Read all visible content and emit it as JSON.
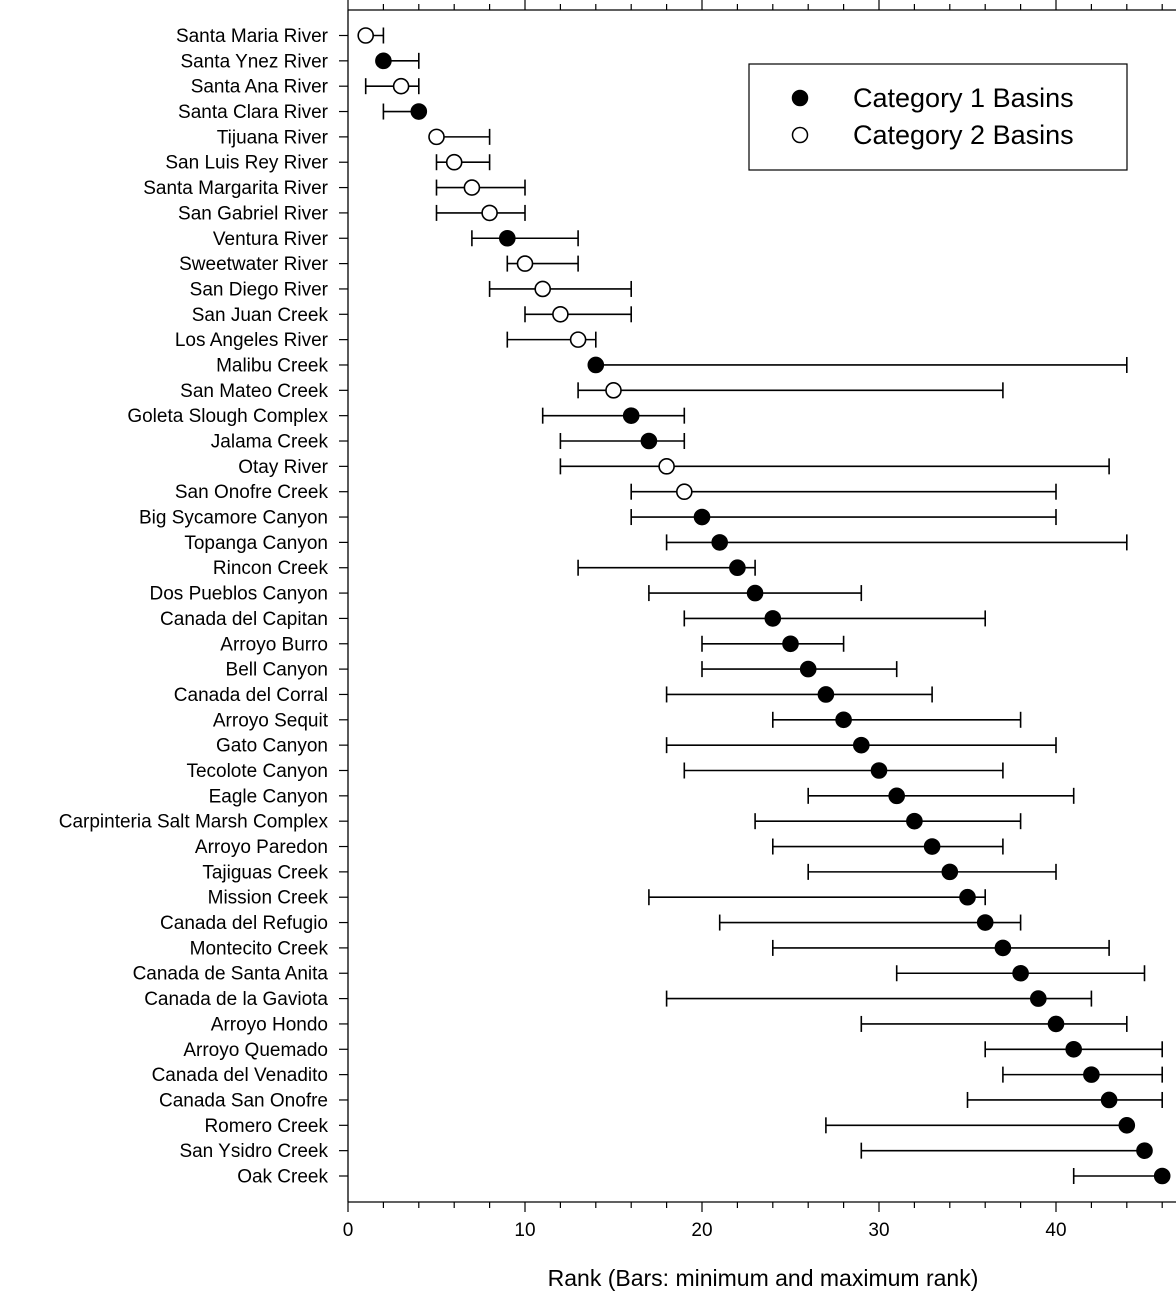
{
  "chart_data": {
    "type": "scatter",
    "title": "",
    "xlabel": "Rank  (Bars: minimum and maximum rank)",
    "ylabel": "",
    "xlim": [
      0,
      46.5
    ],
    "xticks": [
      0,
      10,
      20,
      30,
      40
    ],
    "grid": false,
    "legend_position": "top-right",
    "series": [
      {
        "name": "Category 1 Basins",
        "marker": "filled-circle",
        "color": "#000000"
      },
      {
        "name": "Category 2 Basins",
        "marker": "open-circle",
        "color": "#ffffff"
      }
    ],
    "points": [
      {
        "label": "Santa Maria River",
        "category": 2,
        "rank": 1,
        "min": 1,
        "max": 2
      },
      {
        "label": "Santa Ynez River",
        "category": 1,
        "rank": 2,
        "min": 2,
        "max": 4
      },
      {
        "label": "Santa Ana River",
        "category": 2,
        "rank": 3,
        "min": 1,
        "max": 4
      },
      {
        "label": "Santa Clara River",
        "category": 1,
        "rank": 4,
        "min": 2,
        "max": 4
      },
      {
        "label": "Tijuana River",
        "category": 2,
        "rank": 5,
        "min": 5,
        "max": 8
      },
      {
        "label": "San Luis Rey River",
        "category": 2,
        "rank": 6,
        "min": 5,
        "max": 8
      },
      {
        "label": "Santa Margarita River",
        "category": 2,
        "rank": 7,
        "min": 5,
        "max": 10
      },
      {
        "label": "San Gabriel River",
        "category": 2,
        "rank": 8,
        "min": 5,
        "max": 10
      },
      {
        "label": "Ventura River",
        "category": 1,
        "rank": 9,
        "min": 7,
        "max": 13
      },
      {
        "label": "Sweetwater River",
        "category": 2,
        "rank": 10,
        "min": 9,
        "max": 13
      },
      {
        "label": "San Diego River",
        "category": 2,
        "rank": 11,
        "min": 8,
        "max": 16
      },
      {
        "label": "San Juan Creek",
        "category": 2,
        "rank": 12,
        "min": 10,
        "max": 16
      },
      {
        "label": "Los Angeles River",
        "category": 2,
        "rank": 13,
        "min": 9,
        "max": 14
      },
      {
        "label": "Malibu Creek",
        "category": 1,
        "rank": 14,
        "min": 14,
        "max": 44
      },
      {
        "label": "San Mateo Creek",
        "category": 2,
        "rank": 15,
        "min": 13,
        "max": 37
      },
      {
        "label": "Goleta Slough Complex",
        "category": 1,
        "rank": 16,
        "min": 11,
        "max": 19
      },
      {
        "label": "Jalama Creek",
        "category": 1,
        "rank": 17,
        "min": 12,
        "max": 19
      },
      {
        "label": "Otay River",
        "category": 2,
        "rank": 18,
        "min": 12,
        "max": 43
      },
      {
        "label": "San Onofre Creek",
        "category": 2,
        "rank": 19,
        "min": 16,
        "max": 40
      },
      {
        "label": "Big Sycamore Canyon",
        "category": 1,
        "rank": 20,
        "min": 16,
        "max": 40
      },
      {
        "label": "Topanga Canyon",
        "category": 1,
        "rank": 21,
        "min": 18,
        "max": 44
      },
      {
        "label": "Rincon Creek",
        "category": 1,
        "rank": 22,
        "min": 13,
        "max": 23
      },
      {
        "label": "Dos Pueblos Canyon",
        "category": 1,
        "rank": 23,
        "min": 17,
        "max": 29
      },
      {
        "label": "Canada del Capitan",
        "category": 1,
        "rank": 24,
        "min": 19,
        "max": 36
      },
      {
        "label": "Arroyo Burro",
        "category": 1,
        "rank": 25,
        "min": 20,
        "max": 28
      },
      {
        "label": "Bell Canyon",
        "category": 1,
        "rank": 26,
        "min": 20,
        "max": 31
      },
      {
        "label": "Canada del Corral",
        "category": 1,
        "rank": 27,
        "min": 18,
        "max": 33
      },
      {
        "label": "Arroyo Sequit",
        "category": 1,
        "rank": 28,
        "min": 24,
        "max": 38
      },
      {
        "label": "Gato Canyon",
        "category": 1,
        "rank": 29,
        "min": 18,
        "max": 40
      },
      {
        "label": "Tecolote Canyon",
        "category": 1,
        "rank": 30,
        "min": 19,
        "max": 37
      },
      {
        "label": "Eagle Canyon",
        "category": 1,
        "rank": 31,
        "min": 26,
        "max": 41
      },
      {
        "label": "Carpinteria Salt Marsh Complex",
        "category": 1,
        "rank": 32,
        "min": 23,
        "max": 38
      },
      {
        "label": "Arroyo Paredon",
        "category": 1,
        "rank": 33,
        "min": 24,
        "max": 37
      },
      {
        "label": "Tajiguas Creek",
        "category": 1,
        "rank": 34,
        "min": 26,
        "max": 40
      },
      {
        "label": "Mission Creek",
        "category": 1,
        "rank": 35,
        "min": 17,
        "max": 36
      },
      {
        "label": "Canada del Refugio",
        "category": 1,
        "rank": 36,
        "min": 21,
        "max": 38
      },
      {
        "label": "Montecito Creek",
        "category": 1,
        "rank": 37,
        "min": 24,
        "max": 43
      },
      {
        "label": "Canada de Santa Anita",
        "category": 1,
        "rank": 38,
        "min": 31,
        "max": 45
      },
      {
        "label": "Canada de la Gaviota",
        "category": 1,
        "rank": 39,
        "min": 18,
        "max": 42
      },
      {
        "label": "Arroyo Hondo",
        "category": 1,
        "rank": 40,
        "min": 29,
        "max": 44
      },
      {
        "label": "Arroyo Quemado",
        "category": 1,
        "rank": 41,
        "min": 36,
        "max": 46
      },
      {
        "label": "Canada del Venadito",
        "category": 1,
        "rank": 42,
        "min": 37,
        "max": 46
      },
      {
        "label": "Canada San Onofre",
        "category": 1,
        "rank": 43,
        "min": 35,
        "max": 46
      },
      {
        "label": "Romero Creek",
        "category": 1,
        "rank": 44,
        "min": 27,
        "max": 44
      },
      {
        "label": "San Ysidro Creek",
        "category": 1,
        "rank": 45,
        "min": 29,
        "max": 45
      },
      {
        "label": "Oak Creek",
        "category": 1,
        "rank": 46,
        "min": 41,
        "max": 46
      }
    ]
  }
}
